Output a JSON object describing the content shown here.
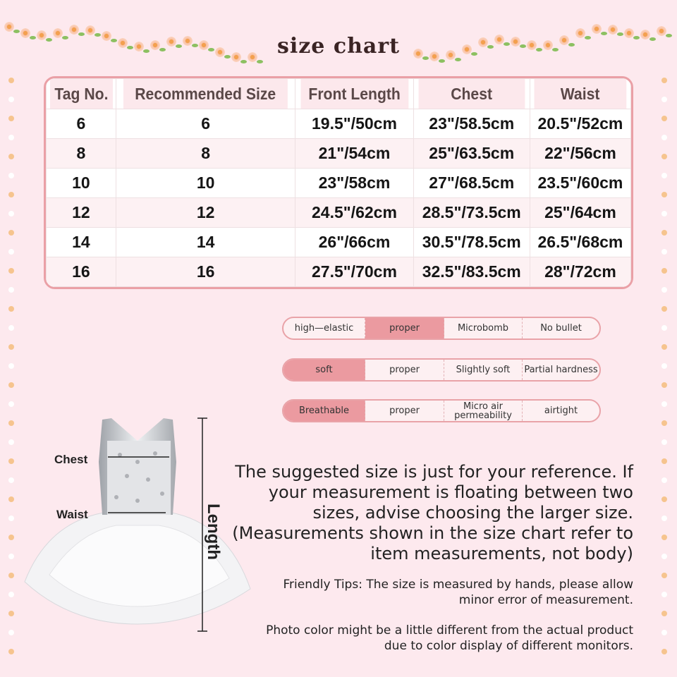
{
  "title": "size chart",
  "table": {
    "headers": [
      "Tag No.",
      "Recommended Size",
      "Front Length",
      "Chest",
      "Waist"
    ],
    "rows": [
      [
        "6",
        "6",
        "19.5\"/50cm",
        "23\"/58.5cm",
        "20.5\"/52cm"
      ],
      [
        "8",
        "8",
        "21\"/54cm",
        "25\"/63.5cm",
        "22\"/56cm"
      ],
      [
        "10",
        "10",
        "23\"/58cm",
        "27\"/68.5cm",
        "23.5\"/60cm"
      ],
      [
        "12",
        "12",
        "24.5\"/62cm",
        "28.5\"/73.5cm",
        "25\"/64cm"
      ],
      [
        "14",
        "14",
        "26\"/66cm",
        "30.5\"/78.5cm",
        "26.5\"/68cm"
      ],
      [
        "16",
        "16",
        "27.5\"/70cm",
        "32.5\"/83.5cm",
        "28\"/72cm"
      ]
    ]
  },
  "attributes": [
    {
      "cells": [
        "high—elastic",
        "proper",
        "Microbomb",
        "No bullet"
      ],
      "selected": 1
    },
    {
      "cells": [
        "soft",
        "proper",
        "Slightly soft",
        "Partial hardness"
      ],
      "selected": 0
    },
    {
      "cells": [
        "Breathable",
        "proper",
        "Micro air permeability",
        "airtight"
      ],
      "selected": 0
    }
  ],
  "diagram": {
    "chest": "Chest",
    "waist": "Waist",
    "length": "Length"
  },
  "note": "The suggested size is just for your reference. If your measurement is floating between two sizes, advise choosing the larger size. (Measurements shown in the size chart refer to item measurements, not body)",
  "tips": "Friendly Tips: The size is measured by hands, please allow minor error of measurement.",
  "photo_note": "Photo color might be a little different from the actual product due to color display of different monitors.",
  "colors": {
    "background": "#fde9ee",
    "accent": "#eb9aa0",
    "border": "#e9a3a8"
  }
}
